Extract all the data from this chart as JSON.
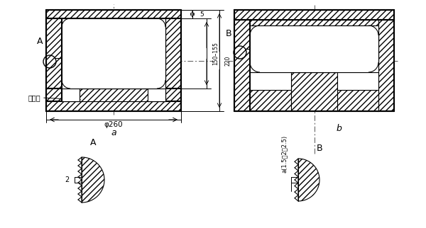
{
  "bg_color": "#ffffff",
  "line_color": "#000000",
  "fig_width": 6.0,
  "fig_height": 3.22,
  "left_view": {
    "label": "a",
    "dim_phi": "φ260",
    "text_xiao": "小锥度",
    "circle_label": "A",
    "dim_5": "5",
    "dim_155": "150–155",
    "dim_220": "220"
  },
  "right_view": {
    "label": "b",
    "circle_label": "B",
    "dim_label": "a(1.5、2、2.5)"
  },
  "detail_A": {
    "label": "A",
    "dim": "2"
  },
  "detail_B": {
    "label": "B"
  }
}
